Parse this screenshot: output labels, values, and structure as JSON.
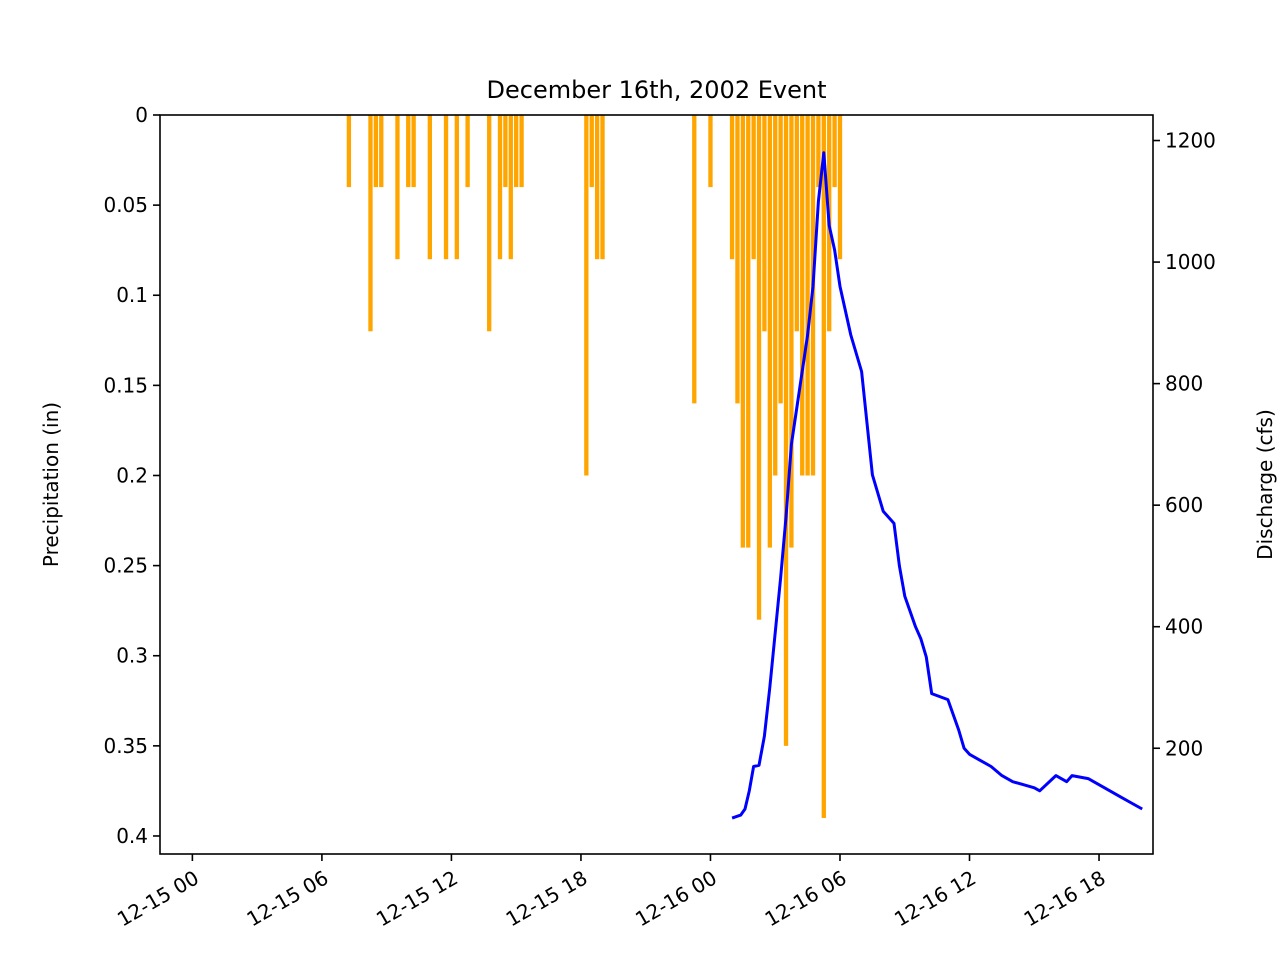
{
  "chart_data": {
    "type": "bar+line",
    "title": "December 16th, 2002 Event",
    "ylabel_left": "Precipitation (in)",
    "ylabel_right": "Discharge (cfs)",
    "x_tick_labels": [
      "12-15 00",
      "12-15 06",
      "12-15 12",
      "12-15 18",
      "12-16 00",
      "12-16 06",
      "12-16 12",
      "12-16 18"
    ],
    "left_tick_labels": [
      "0",
      "0.05",
      "0.1",
      "0.15",
      "0.2",
      "0.25",
      "0.3",
      "0.35",
      "0.4"
    ],
    "right_tick_labels": [
      "200",
      "400",
      "600",
      "800",
      "1000",
      "1200"
    ],
    "xlim_hours": [
      -1.5,
      44.5
    ],
    "ylim_left": [
      0.41,
      0
    ],
    "ylim_right": [
      26,
      1242
    ],
    "colors": {
      "precipitation": "#FFA500",
      "discharge": "#0000FF"
    },
    "precipitation": {
      "hours": [
        7.25,
        8.25,
        8.5,
        8.75,
        9.5,
        10.0,
        10.25,
        11.0,
        11.75,
        12.25,
        12.75,
        13.75,
        14.25,
        14.5,
        14.75,
        15.0,
        15.25,
        18.25,
        18.5,
        18.75,
        19.0,
        23.25,
        24.0,
        25.0,
        25.25,
        25.5,
        25.75,
        26.0,
        26.25,
        26.5,
        26.75,
        27.0,
        27.25,
        27.5,
        27.75,
        28.0,
        28.25,
        28.5,
        28.75,
        29.0,
        29.25,
        29.5,
        29.75,
        30.0
      ],
      "values": [
        0.04,
        0.12,
        0.04,
        0.04,
        0.08,
        0.04,
        0.04,
        0.08,
        0.08,
        0.08,
        0.04,
        0.12,
        0.08,
        0.04,
        0.08,
        0.04,
        0.04,
        0.2,
        0.04,
        0.08,
        0.08,
        0.16,
        0.04,
        0.08,
        0.16,
        0.24,
        0.24,
        0.08,
        0.28,
        0.12,
        0.24,
        0.2,
        0.16,
        0.35,
        0.24,
        0.12,
        0.2,
        0.2,
        0.2,
        0.04,
        0.39,
        0.12,
        0.04,
        0.08
      ]
    },
    "discharge": {
      "hours": [
        25.0,
        25.4,
        25.6,
        25.8,
        26.0,
        26.25,
        26.5,
        26.75,
        27.0,
        27.25,
        27.5,
        27.75,
        28.0,
        28.25,
        28.5,
        28.75,
        29.0,
        29.25,
        29.5,
        29.75,
        30.0,
        30.5,
        31.0,
        31.5,
        31.75,
        32.0,
        32.5,
        32.75,
        33.0,
        33.5,
        33.75,
        34.0,
        34.25,
        35.0,
        35.5,
        35.75,
        36.0,
        36.5,
        37.0,
        37.5,
        38.0,
        38.5,
        39.0,
        39.25,
        40.0,
        40.5,
        40.75,
        41.5,
        42.0,
        42.5,
        43.0,
        43.5,
        44.0
      ],
      "values": [
        85,
        90,
        100,
        130,
        170,
        172,
        220,
        300,
        390,
        480,
        580,
        700,
        760,
        820,
        880,
        960,
        1100,
        1180,
        1060,
        1020,
        960,
        880,
        820,
        650,
        620,
        590,
        570,
        500,
        450,
        400,
        380,
        350,
        290,
        280,
        230,
        200,
        190,
        180,
        170,
        155,
        145,
        140,
        135,
        130,
        155,
        145,
        155,
        150,
        140,
        130,
        120,
        110,
        100
      ]
    }
  }
}
